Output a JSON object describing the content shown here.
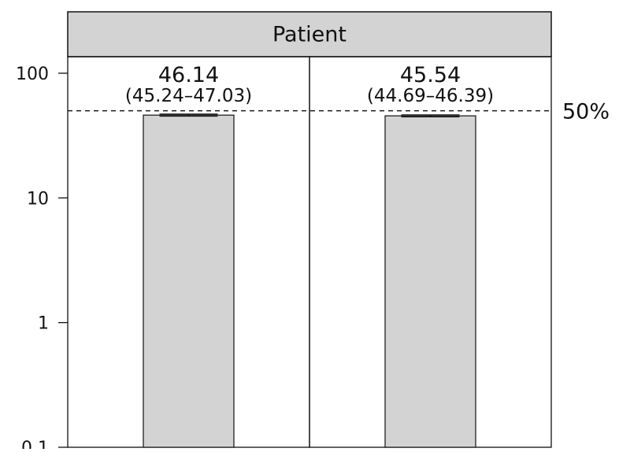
{
  "chart_data": {
    "type": "bar",
    "title": "",
    "xlabel": "",
    "ylabel": "",
    "facet_strip": "Patient",
    "y_scale": "log",
    "ylim": [
      0.1,
      100
    ],
    "y_ticks": [
      {
        "value": 100,
        "label": "100"
      },
      {
        "value": 10,
        "label": "10"
      },
      {
        "value": 1,
        "label": "1"
      },
      {
        "value": 0.1,
        "label": "0.1"
      }
    ],
    "reference_line": {
      "value": 50,
      "label": "50%",
      "style": "dashed"
    },
    "grid": false,
    "legend": "none",
    "bar_color": "#d3d3d3",
    "panels": [
      {
        "value": 46.14,
        "ci_low": 45.24,
        "ci_high": 47.03,
        "value_label": "46.14",
        "ci_label": "(45.24–47.03)"
      },
      {
        "value": 45.54,
        "ci_low": 44.69,
        "ci_high": 46.39,
        "value_label": "45.54",
        "ci_label": "(44.69–46.39)"
      }
    ]
  }
}
